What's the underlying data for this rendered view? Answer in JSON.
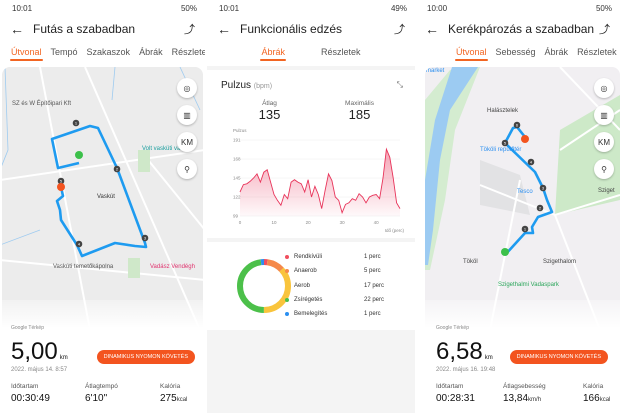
{
  "screens": [
    {
      "status": {
        "time": "10:01",
        "battery": "50%"
      },
      "title": "Futás a szabadban",
      "tabs": [
        "Útvonal",
        "Tempó",
        "Szakaszok",
        "Ábrák",
        "Részletek"
      ],
      "map": {
        "labels": [
          "SZ és W Építőipari Kft",
          "Volt vasküti vasútál",
          "Vaskút",
          "Vaskúti temetőkápolna",
          "Vadász Vendégh"
        ],
        "attribution": "Google Térkép",
        "markers": [
          "1",
          "2",
          "3",
          "4",
          "5"
        ]
      },
      "buttons": {
        "locate": "locate-icon",
        "map_type": "map-icon",
        "km": "KM",
        "marker": "route-marker-icon",
        "dynamic": "DINAMIKUS NYOMON KÖVETÉS"
      },
      "distance": "5,00",
      "distance_unit": "km",
      "date": "2022. május 14. 8:57",
      "stats": [
        {
          "label": "Időtartam",
          "value": "00:30:49",
          "unit": ""
        },
        {
          "label": "Átlagtempó",
          "value": "6'10\"",
          "unit": ""
        },
        {
          "label": "Kalória",
          "value": "275",
          "unit": "kcal"
        }
      ]
    },
    {
      "status": {
        "time": "10:01",
        "battery": "49%"
      },
      "title": "Funkcionális edzés",
      "tabs": [
        "Ábrák",
        "Részletek"
      ],
      "pulse": {
        "title": "Pulzus",
        "unit": "(bpm)",
        "avg_label": "Átlag",
        "avg": "135",
        "max_label": "Maximális",
        "max": "185"
      },
      "zones": [
        {
          "name": "Rendkívüli",
          "value": "1 perc",
          "minutes": 1,
          "color": "#f04e5e"
        },
        {
          "name": "Anaerob",
          "value": "5 perc",
          "minutes": 5,
          "color": "#f5894a"
        },
        {
          "name": "Aerob",
          "value": "17 perc",
          "minutes": 17,
          "color": "#f9c43c"
        },
        {
          "name": "Zsírégetés",
          "value": "22 perc",
          "minutes": 22,
          "color": "#4cc04a"
        },
        {
          "name": "Bemelegítés",
          "value": "1 perc",
          "minutes": 1,
          "color": "#2b8ff0"
        }
      ]
    },
    {
      "status": {
        "time": "10:00",
        "battery": "50%"
      },
      "title": "Kerékpározás a szabadban",
      "tabs": [
        "Útvonal",
        "Sebesség",
        "Ábrák",
        "Részletek"
      ],
      "map": {
        "labels": [
          "market",
          "Halásztelek",
          "Tököli repülőtér",
          "Tesco",
          "Sziget",
          "Tököl",
          "Szigethalom",
          "Szigethalmi Vadaspark"
        ],
        "attribution": "Google Térkép",
        "markers": [
          "1",
          "2",
          "3",
          "4",
          "5",
          "6"
        ]
      },
      "buttons": {
        "km": "KM",
        "dynamic": "DINAMIKUS NYOMON KÖVETÉS"
      },
      "distance": "6,58",
      "distance_unit": "km",
      "date": "2022. május 16. 19:48",
      "stats": [
        {
          "label": "Időtartam",
          "value": "00:28:31",
          "unit": ""
        },
        {
          "label": "Átlagsebesség",
          "value": "13,84",
          "unit": "km/h"
        },
        {
          "label": "Kalória",
          "value": "166",
          "unit": "kcal"
        }
      ]
    }
  ],
  "chart_data": {
    "type": "area",
    "title": "",
    "ylabel": "Pulzus",
    "xlabel": "Idő (perc)",
    "yticks": [
      99,
      122,
      145,
      168,
      191
    ],
    "xticks": [
      0,
      10,
      20,
      30,
      40
    ],
    "ylim": [
      99,
      191
    ],
    "xlim": [
      0,
      47
    ],
    "color": "#e8345a",
    "x": [
      0,
      1,
      2,
      3,
      4,
      5,
      6,
      7,
      8,
      9,
      10,
      11,
      12,
      13,
      14,
      15,
      16,
      17,
      18,
      19,
      20,
      21,
      22,
      23,
      24,
      25,
      26,
      27,
      28,
      29,
      30,
      31,
      32,
      33,
      34,
      35,
      36,
      37,
      38,
      39,
      40,
      41,
      42,
      43,
      44,
      45,
      46,
      47
    ],
    "y": [
      128,
      137,
      138,
      141,
      145,
      150,
      140,
      152,
      155,
      140,
      125,
      118,
      112,
      125,
      120,
      140,
      143,
      140,
      138,
      128,
      143,
      122,
      135,
      125,
      108,
      130,
      150,
      142,
      122,
      118,
      103,
      113,
      115,
      120,
      118,
      126,
      122,
      115,
      122,
      124,
      125,
      120,
      145,
      180,
      170,
      145,
      115,
      108
    ]
  }
}
